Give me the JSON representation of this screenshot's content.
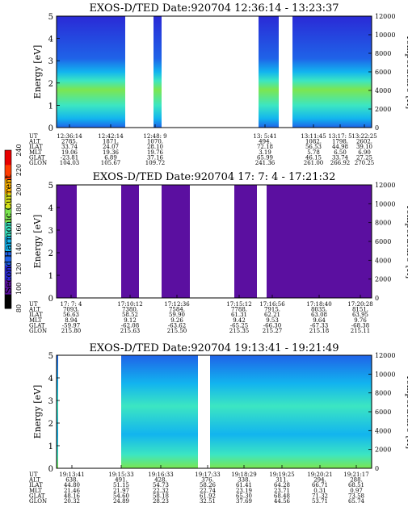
{
  "colorbar": {
    "label": "Second Harmonic Current",
    "ticks": [
      "80",
      "100",
      "120",
      "140",
      "160",
      "180",
      "200",
      "220",
      "240"
    ],
    "colors": [
      "#000000",
      "#5b0fa0",
      "#2a2ad6",
      "#1f63e8",
      "#12b4ef",
      "#3ce6c2",
      "#7ce650",
      "#d6e21a",
      "#ffb400",
      "#ff3c00",
      "#e80000"
    ]
  },
  "info_row_labels": [
    "UT",
    "ALT",
    "ILAT",
    "MLT",
    "GLAT",
    "GLON"
  ],
  "chart_data": [
    {
      "type": "heatmap",
      "title": "EXOS-D/TED   Date:920704   12:36:14 - 13:23:37",
      "ylabel": "Energy [eV]",
      "y2label": "Temperature [K]",
      "ylim": [
        0,
        5
      ],
      "y2lim": [
        0,
        12000
      ],
      "yticks": [
        "0",
        "1",
        "2",
        "3",
        "4",
        "5"
      ],
      "y2ticks": [
        "0",
        "2000",
        "4000",
        "6000",
        "8000",
        "10000",
        "12000"
      ],
      "columns": [
        {
          "UT": "12:36:14",
          "ALT": "2785.",
          "ILAT": "33.74",
          "MLT": "19.06",
          "GLAT": "-23.81",
          "GLON": "104.03"
        },
        {
          "UT": "12:42:14",
          "ALT": "1871.",
          "ILAT": "24.07",
          "MLT": "19.36",
          "GLAT": "6.89",
          "GLON": "105.67"
        },
        {
          "UT": "12:48: 9",
          "ALT": "1070.",
          "ILAT": "28.10",
          "MLT": "19.76",
          "GLAT": "37.16",
          "GLON": "109.72"
        },
        {
          "UT": "13: 5:41",
          "ALT": "494.",
          "ILAT": "72.18",
          "MLT": "3.19",
          "GLAT": "65.99",
          "GLON": "241.36"
        },
        {
          "UT": "13:11:45",
          "ALT": "1082.",
          "ILAT": "56.53",
          "MLT": "5.78",
          "GLAT": "46.15",
          "GLON": "261.00"
        },
        {
          "UT": "13:17: 5",
          "ALT": "1798.",
          "ILAT": "44.98",
          "MLT": "6.50",
          "GLAT": "33.74",
          "GLON": "266.92"
        },
        {
          "UT": "13:22:25",
          "ALT": "2602.",
          "ILAT": "39.10",
          "MLT": "6.90",
          "GLAT": "27.25",
          "GLON": "270.25"
        }
      ]
    },
    {
      "type": "heatmap",
      "title": "EXOS-D/TED   Date:920704   17: 7: 4 - 17:21:32",
      "ylabel": "Energy [eV]",
      "y2label": "Temperature [K]",
      "ylim": [
        0,
        5
      ],
      "y2lim": [
        0,
        12000
      ],
      "yticks": [
        "0",
        "1",
        "2",
        "3",
        "4",
        "5"
      ],
      "y2ticks": [
        "0",
        "2000",
        "4000",
        "6000",
        "8000",
        "10000",
        "12000"
      ],
      "columns": [
        {
          "UT": "17: 7: 4",
          "ALT": "7093.",
          "ILAT": "56.63",
          "MLT": "8.94",
          "GLAT": "-59.97",
          "GLON": "215.80"
        },
        {
          "UT": "17:10:12",
          "ALT": "7380.",
          "ILAT": "58.52",
          "MLT": "9.12",
          "GLAT": "-62.08",
          "GLON": "215.63"
        },
        {
          "UT": "17:12:36",
          "ALT": "7584.",
          "ILAT": "59.90",
          "MLT": "9.26",
          "GLAT": "-63.62",
          "GLON": "215.50"
        },
        {
          "UT": "17:15:12",
          "ALT": "7788.",
          "ILAT": "61.31",
          "MLT": "9.42",
          "GLAT": "-65.25",
          "GLON": "215.35"
        },
        {
          "UT": "17:16:56",
          "ALT": "7915.",
          "ILAT": "62.21",
          "MLT": "9.53",
          "GLAT": "-66.30",
          "GLON": "215.27"
        },
        {
          "UT": "17:18:40",
          "ALT": "8035.",
          "ILAT": "63.08",
          "MLT": "9.64",
          "GLAT": "-67.33",
          "GLON": "215.18"
        },
        {
          "UT": "17:20:28",
          "ALT": "8151.",
          "ILAT": "63.95",
          "MLT": "9.76",
          "GLAT": "-68.38",
          "GLON": "215.11"
        }
      ]
    },
    {
      "type": "heatmap",
      "title": "EXOS-D/TED   Date:920704   19:13:41 - 19:21:49",
      "ylabel": "Energy [eV]",
      "y2label": "Temperature [K]",
      "ylim": [
        0,
        5
      ],
      "y2lim": [
        0,
        12000
      ],
      "yticks": [
        "0",
        "1",
        "2",
        "3",
        "4",
        "5"
      ],
      "y2ticks": [
        "0",
        "2000",
        "4000",
        "6000",
        "8000",
        "10000",
        "12000"
      ],
      "columns": [
        {
          "UT": "19:13:41",
          "ALT": "638.",
          "ILAT": "44.80",
          "MLT": "21.46",
          "GLAT": "48.16",
          "GLON": "20.32"
        },
        {
          "UT": "19:15:33",
          "ALT": "491.",
          "ILAT": "51.15",
          "MLT": "21.97",
          "GLAT": "54.60",
          "GLON": "24.89"
        },
        {
          "UT": "19:16:33",
          "ALT": "428.",
          "ILAT": "54.73",
          "MLT": "22.32",
          "GLAT": "58.18",
          "GLON": "28.23"
        },
        {
          "UT": "19:17:33",
          "ALT": "376.",
          "ILAT": "58.26",
          "MLT": "22.74",
          "GLAT": "61.92",
          "GLON": "32.51"
        },
        {
          "UT": "19:18:29",
          "ALT": "338.",
          "ILAT": "61.41",
          "MLT": "23.19",
          "GLAT": "65.30",
          "GLON": "37.69"
        },
        {
          "UT": "19:19:25",
          "ALT": "311.",
          "ILAT": "64.28",
          "MLT": "23.71",
          "GLAT": "68.48",
          "GLON": "44.56"
        },
        {
          "UT": "19:20:21",
          "ALT": "294.",
          "ILAT": "66.71",
          "MLT": "0.31",
          "GLAT": "71.32",
          "GLON": "53.71"
        },
        {
          "UT": "19:21:17",
          "ALT": "288.",
          "ILAT": "68.51",
          "MLT": "0.97",
          "GLAT": "73.58",
          "GLON": "65.74"
        }
      ]
    }
  ]
}
